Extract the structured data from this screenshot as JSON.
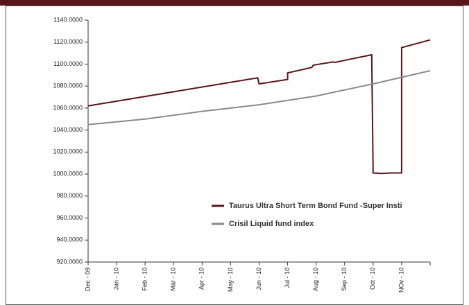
{
  "chart_data": {
    "type": "line",
    "xlim": [
      0,
      12
    ],
    "xticks": [
      {
        "value": 0,
        "label": "Dec - 09"
      },
      {
        "value": 1,
        "label": "Jan - 10"
      },
      {
        "value": 2,
        "label": "Feb - 10"
      },
      {
        "value": 3,
        "label": "Mar - 10"
      },
      {
        "value": 4,
        "label": "Apr - 10"
      },
      {
        "value": 5,
        "label": "May - 10"
      },
      {
        "value": 6,
        "label": "Jun - 10"
      },
      {
        "value": 7,
        "label": "Jul - 10"
      },
      {
        "value": 8,
        "label": "Aug - 10"
      },
      {
        "value": 9,
        "label": "Sep - 10"
      },
      {
        "value": 10,
        "label": "Oct - 10"
      },
      {
        "value": 11,
        "label": "NOv - 10"
      },
      12
    ],
    "ylim": [
      920,
      1140
    ],
    "yticks": [
      {
        "value": 920,
        "label": "920.0000"
      },
      {
        "value": 940,
        "label": "940.0000"
      },
      {
        "value": 960,
        "label": "960.0000"
      },
      {
        "value": 980,
        "label": "980.0000"
      },
      {
        "value": 1000,
        "label": "1000.0000"
      },
      {
        "value": 1020,
        "label": "1020.0000"
      },
      {
        "value": 1040,
        "label": "1040.0000"
      },
      {
        "value": 1060,
        "label": "1060.0000"
      },
      {
        "value": 1080,
        "label": "1080.0000"
      },
      {
        "value": 1100,
        "label": "1100.0000"
      },
      {
        "value": 1120,
        "label": "1120.0000"
      },
      {
        "value": 1140,
        "label": "1140.0000"
      }
    ],
    "series": [
      {
        "name": "Taurus Ultra Short Term Bond Fund -Super Insti",
        "color": "#5a1519",
        "x": [
          0,
          5.95,
          6.0,
          7.0,
          7.0,
          7.85,
          7.9,
          8.6,
          8.65,
          9.95,
          10.0,
          10.3,
          10.6,
          11.0,
          11.0,
          12
        ],
        "values": [
          1062,
          1087.5,
          1082,
          1086,
          1092,
          1097,
          1099,
          1102,
          1101.5,
          1108.5,
          1001,
          1000.5,
          1001,
          1001,
          1115,
          1122
        ]
      },
      {
        "name": "Crisil Liquid fund index",
        "color": "#8a8a8a",
        "x": [
          0,
          2,
          4,
          6,
          8,
          10,
          12
        ],
        "values": [
          1045,
          1050,
          1057,
          1063,
          1071,
          1082,
          1094
        ]
      }
    ],
    "legend": "lower right"
  }
}
